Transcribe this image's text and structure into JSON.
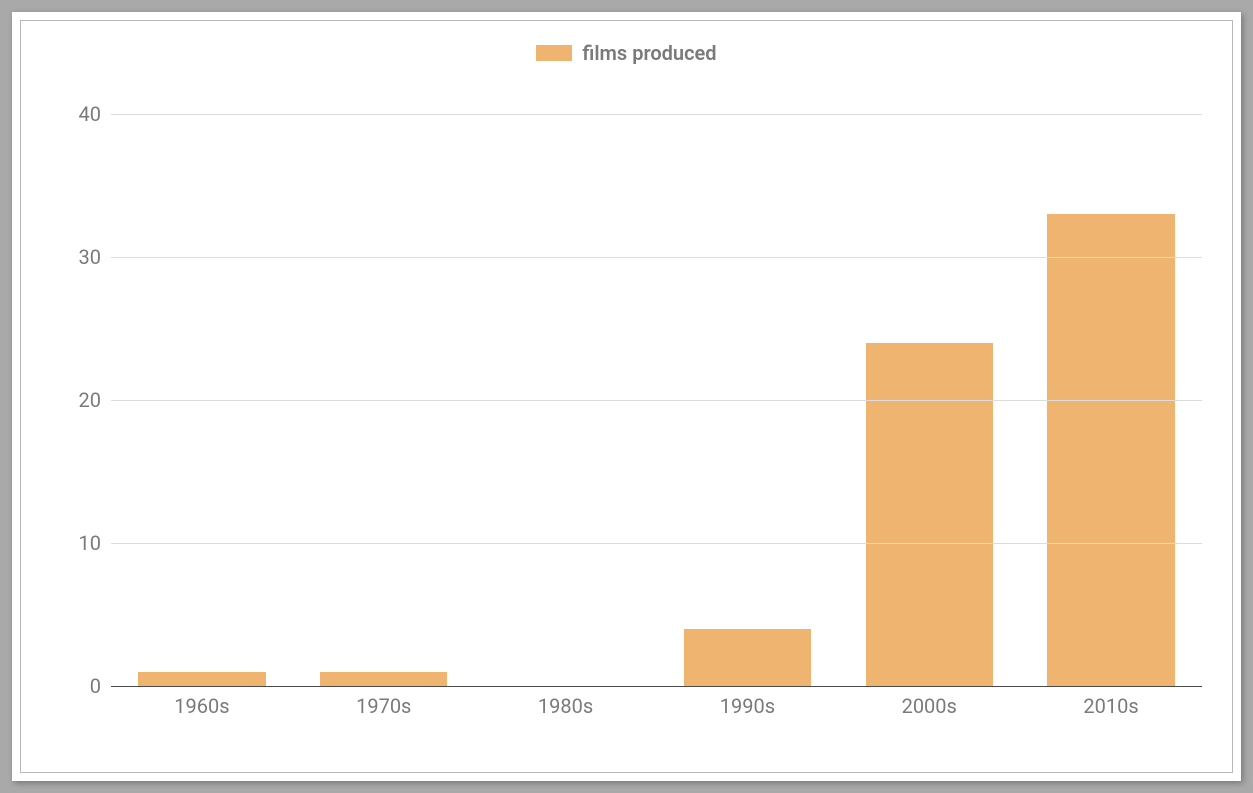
{
  "chart": {
    "type": "bar",
    "legend": {
      "label": "films produced",
      "swatch_color": "#efb46f",
      "label_color": "#7a7a7a",
      "label_fontsize": 20,
      "label_fontweight": 600
    },
    "categories": [
      "1960s",
      "1970s",
      "1980s",
      "1990s",
      "2000s",
      "2010s"
    ],
    "values": [
      1,
      1,
      0,
      4,
      24,
      33
    ],
    "bar_color": "#efb46f",
    "bar_width": 0.7,
    "ylim": [
      0,
      42
    ],
    "yticks": [
      0,
      10,
      20,
      30,
      40
    ],
    "grid_color": "#dcdcdc",
    "baseline_color": "#4a4a4a",
    "axis_label_color": "#7a7a7a",
    "axis_label_fontsize": 20,
    "background_color": "#ffffff",
    "page_background": "#a9a9a9",
    "inner_border_color": "#b8b8b8"
  }
}
